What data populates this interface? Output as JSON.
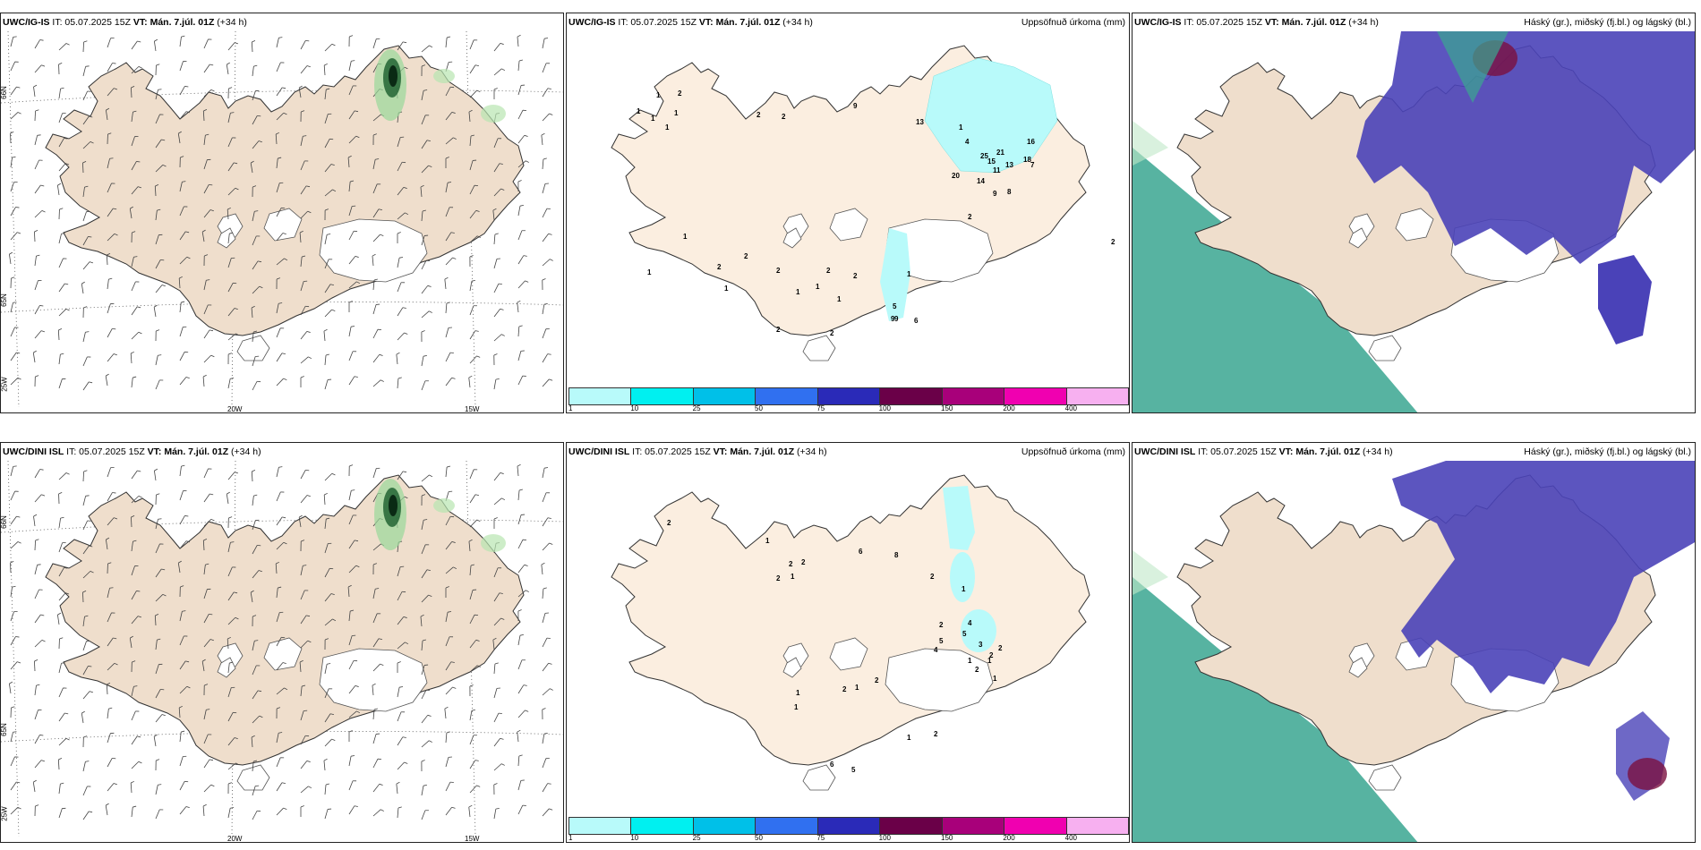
{
  "rows": [
    {
      "panels": [
        {
          "model": "UWC/IG-IS",
          "it": "IT: 05.07.2025 15Z",
          "vt_label": "VT:",
          "vt": "Mán. 7.júl. 01Z",
          "lead": "(+34 h)",
          "title": ""
        },
        {
          "model": "UWC/IG-IS",
          "it": "IT: 05.07.2025 15Z",
          "vt_label": "VT:",
          "vt": "Mán. 7.júl. 01Z",
          "lead": "(+34 h)",
          "title": "Uppsöfnuð úrkoma (mm)"
        },
        {
          "model": "UWC/IG-IS",
          "it": "IT: 05.07.2025 15Z",
          "vt_label": "VT:",
          "vt": "Mán. 7.júl. 01Z",
          "lead": "(+34 h)",
          "title": "Háský (gr.), miðský (fj.bl.) og lágský (bl.)"
        }
      ]
    },
    {
      "panels": [
        {
          "model": "UWC/DINI ISL",
          "it": "IT: 05.07.2025 15Z",
          "vt_label": "VT:",
          "vt": "Mán. 7.júl. 01Z",
          "lead": "(+34 h)",
          "title": ""
        },
        {
          "model": "UWC/DINI ISL",
          "it": "IT: 05.07.2025 15Z",
          "vt_label": "VT:",
          "vt": "Mán. 7.júl. 01Z",
          "lead": "(+34 h)",
          "title": "Uppsöfnuð úrkoma (mm)"
        },
        {
          "model": "UWC/DINI ISL",
          "it": "IT: 05.07.2025 15Z",
          "vt_label": "VT:",
          "vt": "Mán. 7.júl. 01Z",
          "lead": "(+34 h)",
          "title": "Háský (gr.), miðský (fj.bl.) og lágský (bl.)"
        }
      ]
    }
  ],
  "axes": {
    "lon_labels": [
      "20W",
      "15W"
    ],
    "lat_labels": [
      "66N",
      "65N"
    ],
    "lon_left": "25W"
  },
  "colorbar": {
    "ticks": [
      "1",
      "10",
      "25",
      "50",
      "75",
      "100",
      "150",
      "200",
      "400"
    ],
    "colors": [
      "#b8fafa",
      "#00f0f0",
      "#00c0e8",
      "#3070f0",
      "#2a2ab8",
      "#6a0048",
      "#a8007a",
      "#f000b0",
      "#f7b0f0"
    ]
  },
  "precip_labels_top": [
    "1",
    "2",
    "1",
    "1",
    "1",
    "1",
    "2",
    "2",
    "9",
    "13",
    "1",
    "4",
    "25",
    "15",
    "18",
    "13",
    "21",
    "11",
    "16",
    "7",
    "20",
    "14",
    "9",
    "8",
    "2",
    "2",
    "1",
    "2",
    "2",
    "2",
    "1",
    "1",
    "1",
    "2",
    "5",
    "9",
    "9",
    "6",
    "1",
    "2",
    "1",
    "2",
    "2",
    "1"
  ],
  "precip_labels_bottom": [
    "2",
    "1",
    "2",
    "2",
    "1",
    "2",
    "6",
    "8",
    "2",
    "1",
    "4",
    "4",
    "2",
    "5",
    "5",
    "3",
    "2",
    "1",
    "2",
    "2",
    "1",
    "1",
    "2",
    "1",
    "2",
    "1",
    "1",
    "6",
    "5",
    "2",
    "1"
  ],
  "colors": {
    "land": "#efdecc",
    "land_precip": "#fbeee0",
    "hi_cloud": "#3aa690",
    "mid_cloud": "#4a42b8",
    "low_cloud": "#7a1040"
  }
}
